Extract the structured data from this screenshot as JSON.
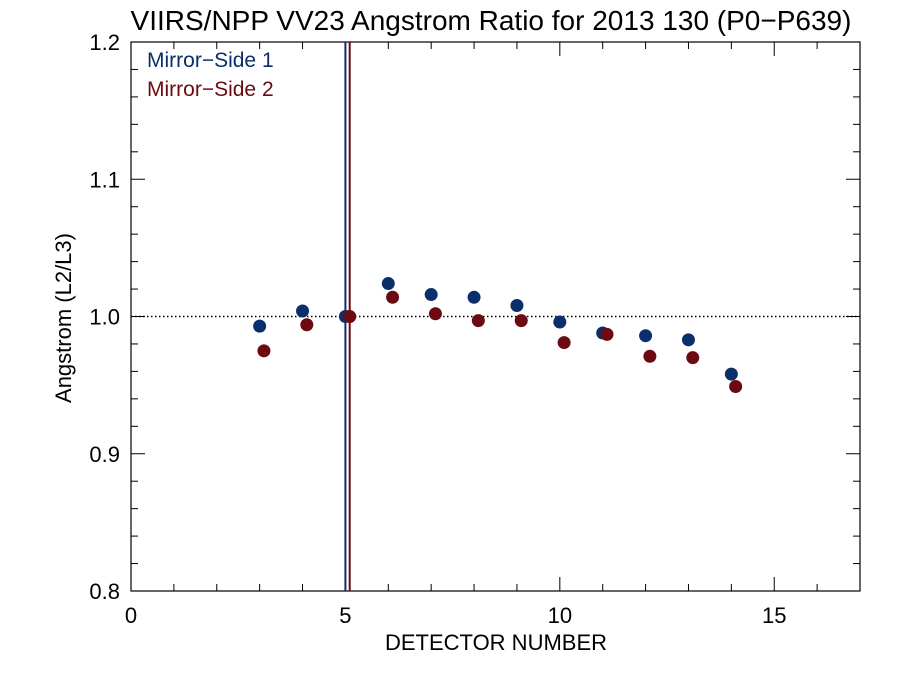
{
  "chart_data": {
    "type": "scatter",
    "title": "VIIRS/NPP VV23 Angstrom Ratio for 2013 130 (P0−P639)",
    "xlabel": "DETECTOR NUMBER",
    "ylabel": "Angstrom (L2/L3)",
    "xlim": [
      0,
      17
    ],
    "ylim": [
      0.8,
      1.2
    ],
    "x_ticks": [
      0,
      5,
      10,
      15
    ],
    "x_tick_labels": [
      "0",
      "5",
      "10",
      "15"
    ],
    "y_ticks": [
      0.8,
      0.9,
      1.0,
      1.1,
      1.2
    ],
    "y_tick_labels": [
      "0.8",
      "0.9",
      "1.0",
      "1.1",
      "1.2"
    ],
    "reference_line": {
      "y": 1.0,
      "style": "dotted"
    },
    "vertical_lines": [
      {
        "x": 5.0,
        "series": "Mirror−Side 1"
      },
      {
        "x": 5.1,
        "series": "Mirror−Side 2"
      }
    ],
    "legend_placement": "top-left",
    "series": [
      {
        "name": "Mirror−Side 1",
        "color": "#0b2f6b",
        "x": [
          3,
          4,
          5,
          6,
          7,
          8,
          9,
          10,
          11,
          12,
          13,
          14
        ],
        "y": [
          0.993,
          1.004,
          1.0,
          1.024,
          1.016,
          1.014,
          1.008,
          0.996,
          0.988,
          0.986,
          0.983,
          0.958
        ]
      },
      {
        "name": "Mirror−Side 2",
        "color": "#6b0a10",
        "x": [
          3.1,
          4.1,
          5.1,
          6.1,
          7.1,
          8.1,
          9.1,
          10.1,
          11.1,
          12.1,
          13.1,
          14.1
        ],
        "y": [
          0.975,
          0.994,
          1.0,
          1.014,
          1.002,
          0.997,
          0.997,
          0.981,
          0.987,
          0.971,
          0.97,
          0.949
        ]
      }
    ]
  }
}
